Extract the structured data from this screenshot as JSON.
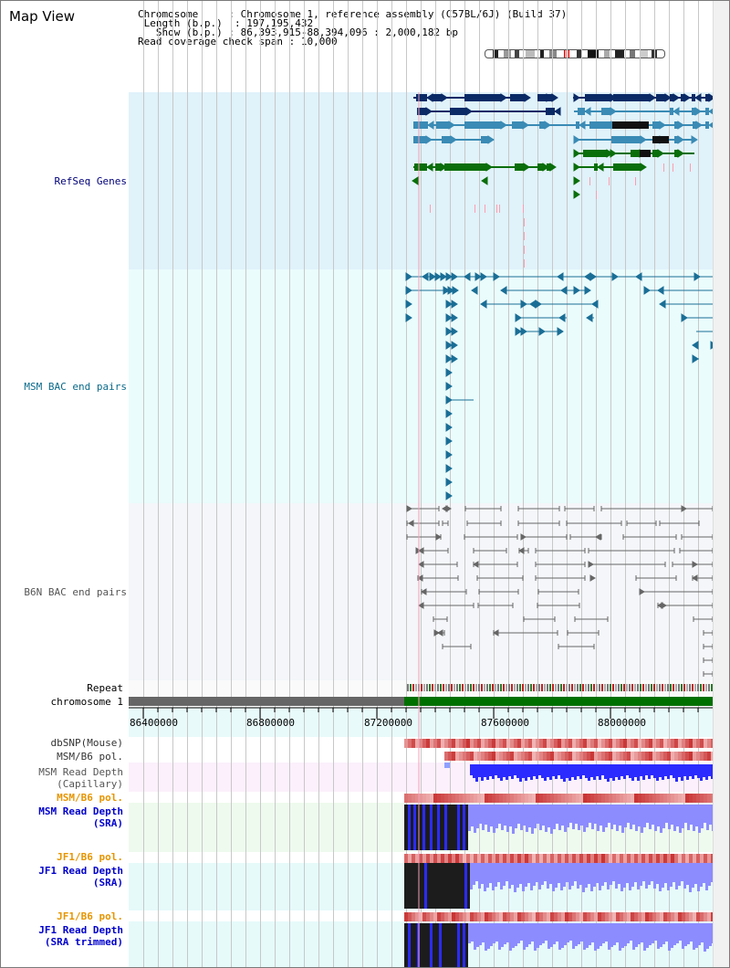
{
  "title": "Map View",
  "info": {
    "chromosome_key": "Chromosome",
    "chromosome_val": "Chromosome 1, reference assembly (C57BL/6J) (Build 37)",
    "length_key": "Length (b.p.)",
    "length_val": "197,195,432",
    "show_key": "Show (b.p.)",
    "show_val": "86,393,915-88,394,096 : 2,000,182 bp",
    "coverage_key": "Read coverage check span",
    "coverage_val": "10,000"
  },
  "tracks": {
    "refseq": "RefSeq Genes",
    "msm_bac": "MSM BAC end pairs",
    "b6n_bac": "B6N BAC end pairs",
    "repeat": "Repeat",
    "chromosome": "chromosome 1",
    "dbsnp": "dbSNP(Mouse)",
    "msm_b6_pol_1": "MSM/B6 pol.",
    "msm_depth_cap_1": "MSM Read Depth",
    "msm_depth_cap_2": "(Capillary)",
    "msm_b6_pol_2": "MSM/B6 pol.",
    "msm_depth_sra_1": "MSM Read Depth",
    "msm_depth_sra_2": "(SRA)",
    "jf1_b6_pol_1": "JF1/B6 pol.",
    "jf1_depth_sra_1": "JF1 Read Depth",
    "jf1_depth_sra_2": "(SRA)",
    "jf1_b6_pol_2": "JF1/B6 pol.",
    "jf1_depth_trim_1": "JF1 Read Depth",
    "jf1_depth_trim_2": "(SRA trimmed)"
  },
  "axis": {
    "ticks": [
      "86400000",
      "86800000",
      "87200000",
      "87600000",
      "88000000"
    ]
  },
  "colors": {
    "refseq_bg": "#e0f2fa",
    "msm_bg": "#eafcfc",
    "b6n_bg": "#f4f6f9",
    "gene_navy": "#0a2a66",
    "gene_teal": "#3a8bb5",
    "gene_green": "#0a6e0a",
    "bac_blue": "#1a6e96",
    "bac_gray": "#666666",
    "chrom_gray": "#666666",
    "chrom_green": "#007000",
    "depth_blue": "#2b2bff",
    "depth_lilac": "#8c8cff",
    "pol_red": "#e74c4c",
    "label_navy": "#00007a",
    "label_orange": "#e69500",
    "label_teal": "#0a6a8a"
  }
}
